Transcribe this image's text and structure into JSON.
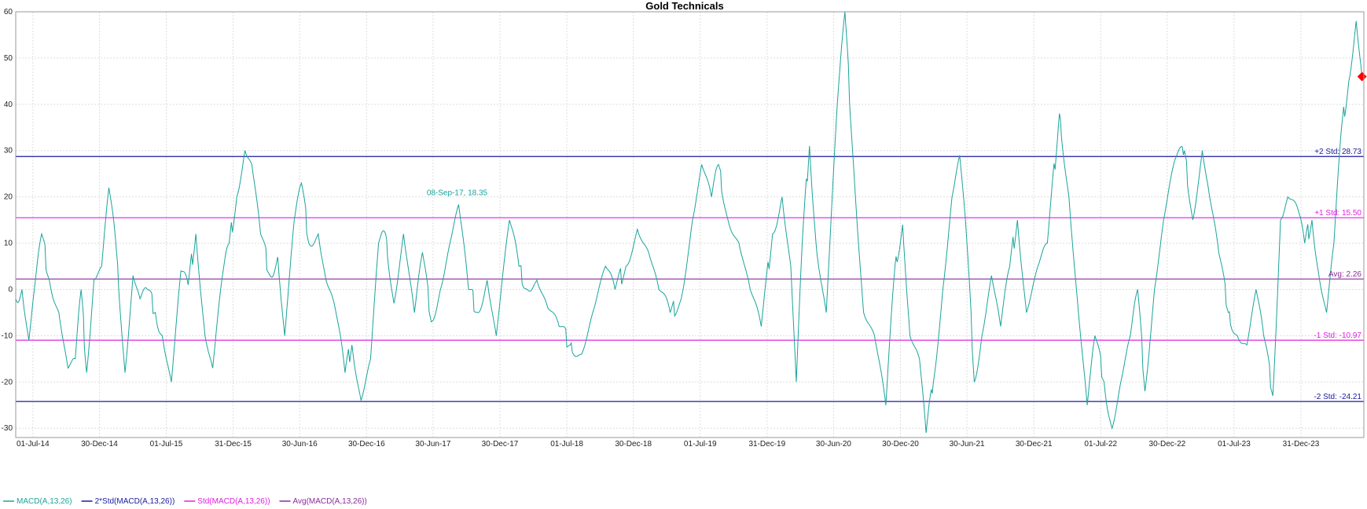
{
  "chart_data": {
    "type": "line",
    "title": "Gold Technicals",
    "ylim": [
      -32,
      60
    ],
    "yticks": [
      60,
      50,
      40,
      30,
      20,
      10,
      0,
      -10,
      -20,
      -30
    ],
    "xlim": [
      "2014-05-15",
      "2024-06-20"
    ],
    "x_tick_labels": [
      "01-Jul-14",
      "30-Dec-14",
      "01-Jul-15",
      "31-Dec-15",
      "30-Jun-16",
      "30-Dec-16",
      "30-Jun-17",
      "30-Dec-17",
      "01-Jul-18",
      "30-Dec-18",
      "01-Jul-19",
      "31-Dec-19",
      "30-Jun-20",
      "30-Dec-20",
      "30-Jun-21",
      "30-Dec-21",
      "01-Jul-22",
      "30-Dec-22",
      "01-Jul-23",
      "31-Dec-23"
    ],
    "x_tick_dates": [
      "2014-07-01",
      "2014-12-30",
      "2015-07-01",
      "2015-12-31",
      "2016-06-30",
      "2016-12-30",
      "2017-06-30",
      "2017-12-30",
      "2018-07-01",
      "2018-12-30",
      "2019-07-01",
      "2019-12-31",
      "2020-06-30",
      "2020-12-30",
      "2021-06-30",
      "2021-12-30",
      "2022-07-01",
      "2022-12-30",
      "2023-07-01",
      "2023-12-31"
    ],
    "grid": true,
    "legend_position": "bottom-left",
    "series": [
      {
        "name": "MACD(A,13,26)",
        "color": "#1aa39b",
        "points": [
          [
            "2014-05-15",
            -2
          ],
          [
            "2014-06-01",
            0
          ],
          [
            "2014-06-20",
            -11
          ],
          [
            "2014-07-05",
            0
          ],
          [
            "2014-07-25",
            12
          ],
          [
            "2014-08-15",
            2
          ],
          [
            "2014-09-10",
            -5
          ],
          [
            "2014-10-05",
            -17
          ],
          [
            "2014-10-25",
            -15
          ],
          [
            "2014-11-10",
            0
          ],
          [
            "2014-11-25",
            -18
          ],
          [
            "2014-12-15",
            2
          ],
          [
            "2015-01-05",
            5
          ],
          [
            "2015-01-25",
            22
          ],
          [
            "2015-02-15",
            8
          ],
          [
            "2015-03-10",
            -18
          ],
          [
            "2015-04-01",
            3
          ],
          [
            "2015-04-20",
            -2
          ],
          [
            "2015-05-10",
            0
          ],
          [
            "2015-06-01",
            -5
          ],
          [
            "2015-06-20",
            -10
          ],
          [
            "2015-07-15",
            -20
          ],
          [
            "2015-08-10",
            4
          ],
          [
            "2015-08-30",
            1
          ],
          [
            "2015-09-20",
            12
          ],
          [
            "2015-10-15",
            -10
          ],
          [
            "2015-11-05",
            -17
          ],
          [
            "2015-11-30",
            2
          ],
          [
            "2015-12-20",
            10
          ],
          [
            "2016-01-10",
            20
          ],
          [
            "2016-02-01",
            30
          ],
          [
            "2016-02-20",
            27
          ],
          [
            "2016-03-15",
            12
          ],
          [
            "2016-04-10",
            3
          ],
          [
            "2016-05-01",
            7
          ],
          [
            "2016-05-20",
            -10
          ],
          [
            "2016-06-15",
            15
          ],
          [
            "2016-07-05",
            23
          ],
          [
            "2016-07-25",
            10
          ],
          [
            "2016-08-20",
            12
          ],
          [
            "2016-09-10",
            2
          ],
          [
            "2016-10-05",
            -4
          ],
          [
            "2016-11-01",
            -18
          ],
          [
            "2016-11-20",
            -12
          ],
          [
            "2016-12-15",
            -24
          ],
          [
            "2017-01-10",
            -15
          ],
          [
            "2017-02-01",
            10
          ],
          [
            "2017-02-20",
            12
          ],
          [
            "2017-03-15",
            -3
          ],
          [
            "2017-04-10",
            12
          ],
          [
            "2017-05-10",
            -5
          ],
          [
            "2017-06-01",
            8
          ],
          [
            "2017-06-25",
            -7
          ],
          [
            "2017-07-20",
            0
          ],
          [
            "2017-08-15",
            10
          ],
          [
            "2017-09-08",
            18.35
          ],
          [
            "2017-10-05",
            0
          ],
          [
            "2017-11-01",
            -5
          ],
          [
            "2017-11-25",
            2
          ],
          [
            "2017-12-20",
            -10
          ],
          [
            "2018-01-25",
            15
          ],
          [
            "2018-02-20",
            5
          ],
          [
            "2018-03-15",
            0
          ],
          [
            "2018-04-10",
            2
          ],
          [
            "2018-05-10",
            -4
          ],
          [
            "2018-06-10",
            -8
          ],
          [
            "2018-07-10",
            -12
          ],
          [
            "2018-08-10",
            -14
          ],
          [
            "2018-09-10",
            -5
          ],
          [
            "2018-10-15",
            5
          ],
          [
            "2018-11-10",
            0
          ],
          [
            "2018-12-10",
            5
          ],
          [
            "2019-01-10",
            13
          ],
          [
            "2019-02-10",
            8
          ],
          [
            "2019-03-10",
            0
          ],
          [
            "2019-04-10",
            -5
          ],
          [
            "2019-05-10",
            -2
          ],
          [
            "2019-06-10",
            15
          ],
          [
            "2019-07-05",
            27
          ],
          [
            "2019-08-01",
            20
          ],
          [
            "2019-08-20",
            27
          ],
          [
            "2019-09-15",
            15
          ],
          [
            "2019-10-15",
            10
          ],
          [
            "2019-11-15",
            0
          ],
          [
            "2019-12-15",
            -8
          ],
          [
            "2020-01-15",
            12
          ],
          [
            "2020-02-10",
            20
          ],
          [
            "2020-03-05",
            5
          ],
          [
            "2020-03-20",
            -20
          ],
          [
            "2020-04-05",
            10
          ],
          [
            "2020-04-25",
            31
          ],
          [
            "2020-05-15",
            8
          ],
          [
            "2020-06-10",
            -5
          ],
          [
            "2020-07-10",
            40
          ],
          [
            "2020-07-31",
            60
          ],
          [
            "2020-08-25",
            25
          ],
          [
            "2020-09-20",
            -5
          ],
          [
            "2020-10-20",
            -10
          ],
          [
            "2020-11-20",
            -25
          ],
          [
            "2020-12-15",
            5
          ],
          [
            "2021-01-05",
            14
          ],
          [
            "2021-01-25",
            -10
          ],
          [
            "2021-02-20",
            -15
          ],
          [
            "2021-03-10",
            -31
          ],
          [
            "2021-03-30",
            -20
          ],
          [
            "2021-04-25",
            0
          ],
          [
            "2021-05-20",
            20
          ],
          [
            "2021-06-10",
            29
          ],
          [
            "2021-06-30",
            10
          ],
          [
            "2021-07-20",
            -20
          ],
          [
            "2021-08-10",
            -10
          ],
          [
            "2021-09-05",
            3
          ],
          [
            "2021-09-30",
            -8
          ],
          [
            "2021-10-25",
            5
          ],
          [
            "2021-11-15",
            15
          ],
          [
            "2021-12-10",
            -5
          ],
          [
            "2022-01-10",
            5
          ],
          [
            "2022-02-05",
            10
          ],
          [
            "2022-03-10",
            38
          ],
          [
            "2022-04-05",
            20
          ],
          [
            "2022-05-01",
            -5
          ],
          [
            "2022-05-25",
            -25
          ],
          [
            "2022-06-15",
            -10
          ],
          [
            "2022-07-10",
            -20
          ],
          [
            "2022-08-01",
            -30
          ],
          [
            "2022-08-25",
            -20
          ],
          [
            "2022-09-20",
            -10
          ],
          [
            "2022-10-10",
            0
          ],
          [
            "2022-10-30",
            -22
          ],
          [
            "2022-11-25",
            0
          ],
          [
            "2022-12-20",
            15
          ],
          [
            "2023-01-20",
            28
          ],
          [
            "2023-02-15",
            30
          ],
          [
            "2023-03-10",
            15
          ],
          [
            "2023-04-05",
            30
          ],
          [
            "2023-04-25",
            20
          ],
          [
            "2023-05-20",
            8
          ],
          [
            "2023-06-15",
            -5
          ],
          [
            "2023-07-10",
            -10
          ],
          [
            "2023-08-05",
            -12
          ],
          [
            "2023-08-30",
            0
          ],
          [
            "2023-09-20",
            -10
          ],
          [
            "2023-10-15",
            -23
          ],
          [
            "2023-11-05",
            15
          ],
          [
            "2023-11-25",
            20
          ],
          [
            "2023-12-20",
            18
          ],
          [
            "2024-01-10",
            10
          ],
          [
            "2024-01-30",
            15
          ],
          [
            "2024-02-20",
            2
          ],
          [
            "2024-03-10",
            -5
          ],
          [
            "2024-03-30",
            10
          ],
          [
            "2024-04-20",
            35
          ],
          [
            "2024-05-10",
            45
          ],
          [
            "2024-05-30",
            58
          ],
          [
            "2024-06-15",
            46
          ]
        ]
      },
      {
        "name": "2*Std(MACD(A,13,26))",
        "color": "#1a1aa0",
        "hlines": [
          28.73,
          -24.21
        ]
      },
      {
        "name": "Std(MACD(A,13,26))",
        "color": "#e020e0",
        "hlines": [
          15.5,
          -10.97
        ]
      },
      {
        "name": "Avg(MACD(A,13,26))",
        "color": "#8a2a9a",
        "hlines": [
          2.26
        ]
      }
    ],
    "annotations": {
      "peak_label": "08-Sep-17, 18.35",
      "peak_x": "2017-09-08",
      "peak_y": 18.35,
      "last_value": 46,
      "last_x": "2024-06-15",
      "last_color": "#ff0000",
      "level_labels": [
        {
          "text": "+2 Std: 28.73",
          "value": 28.73,
          "color": "#1a1aa0"
        },
        {
          "text": "+1 Std: 15.50",
          "value": 15.5,
          "color": "#e020e0"
        },
        {
          "text": "Avg: 2.26",
          "value": 2.26,
          "color": "#8a2a9a"
        },
        {
          "text": "-1 Std: -10.97",
          "value": -10.97,
          "color": "#e020e0"
        },
        {
          "text": "-2 Std: -24.21",
          "value": -24.21,
          "color": "#1a1aa0"
        }
      ]
    }
  }
}
